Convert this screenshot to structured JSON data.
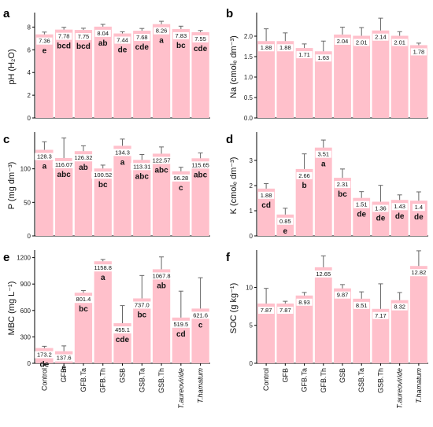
{
  "figure": {
    "bar_color": "#ffc0cb",
    "error_color": "#666666",
    "axis_color": "#000000"
  },
  "chart_data": [
    {
      "panel": "a",
      "type": "bar",
      "ylabel": "pH (H₂O)",
      "ylim": [
        0,
        9
      ],
      "yticks": [
        0,
        2,
        4,
        6,
        8
      ],
      "categories": [
        "Control",
        "GFB",
        "GFB.Ta",
        "GFB.Th",
        "GSB",
        "GSB.Ta",
        "GSB.Th",
        "T.aureoviride",
        "T.hamatum"
      ],
      "values": [
        7.36,
        7.78,
        7.75,
        8.04,
        7.44,
        7.68,
        8.26,
        7.83,
        7.55
      ],
      "errors": [
        0.2,
        0.2,
        0.15,
        0.2,
        0.15,
        0.2,
        0.25,
        0.25,
        0.15
      ],
      "value_labels": [
        "7.36",
        "7.78",
        "7.75",
        "8.04",
        "7.44",
        "7.68",
        "8.26",
        "7.83",
        "7.55"
      ],
      "groups": [
        "e",
        "bcd",
        "bcd",
        "ab",
        "de",
        "cde",
        "a",
        "bc",
        "cde"
      ]
    },
    {
      "panel": "b",
      "type": "bar",
      "ylabel": "Na (cmolₑ dm⁻³)",
      "ylim": [
        0,
        2.5
      ],
      "yticks": [
        0.0,
        0.5,
        1.0,
        1.5,
        2.0
      ],
      "categories": [
        "Control",
        "GFB",
        "GFB.Ta",
        "GFB.Th",
        "GSB",
        "GSB.Ta",
        "GSB.Th",
        "T.aureoviride",
        "T.hamatum"
      ],
      "values": [
        1.88,
        1.88,
        1.71,
        1.63,
        2.04,
        2.01,
        2.14,
        2.01,
        1.78
      ],
      "errors": [
        0.3,
        0.2,
        0.1,
        0.25,
        0.18,
        0.2,
        0.3,
        0.1,
        0.05
      ],
      "value_labels": [
        "1.88",
        "1.88",
        "1.71",
        "1.63",
        "2.04",
        "2.01",
        "2.14",
        "2.01",
        "1.78"
      ],
      "groups": []
    },
    {
      "panel": "c",
      "type": "bar",
      "ylabel": "P (mg dm⁻³)",
      "ylim": [
        0,
        150
      ],
      "yticks": [
        0,
        50,
        100
      ],
      "categories": [
        "Control",
        "GFB",
        "GFB.Ta",
        "GFB.Th",
        "GSB",
        "GSB.Ta",
        "GSB.Th",
        "T.aureoviride",
        "T.hamatum"
      ],
      "values": [
        128.3,
        116.07,
        126.32,
        100.52,
        134.3,
        113.31,
        122.57,
        96.28,
        115.65
      ],
      "errors": [
        12,
        30,
        8,
        5,
        10,
        8,
        10,
        6,
        8
      ],
      "value_labels": [
        "128.3",
        "116.07",
        "126.32",
        "100.52",
        "134.3",
        "113.31",
        "122.57",
        "96.28",
        "115.65"
      ],
      "groups": [
        "a",
        "abc",
        "ab",
        "bc",
        "a",
        "abc",
        "abc",
        "c",
        "abc"
      ]
    },
    {
      "panel": "d",
      "type": "bar",
      "ylabel": "K (cmolₑ dm⁻³)",
      "ylim": [
        0,
        4
      ],
      "yticks": [
        0,
        1,
        2,
        3
      ],
      "categories": [
        "Control",
        "GFB",
        "GFB.Ta",
        "GFB.Th",
        "GSB",
        "GSB.Ta",
        "GSB.Th",
        "T.aureoviride",
        "T.hamatum"
      ],
      "values": [
        1.88,
        0.85,
        2.66,
        3.51,
        2.31,
        1.51,
        1.36,
        1.43,
        1.4
      ],
      "errors": [
        0.2,
        0.25,
        0.6,
        0.3,
        0.35,
        0.25,
        0.65,
        0.2,
        0.35
      ],
      "value_labels": [
        "1.88",
        "0.85",
        "2.66",
        "3.51",
        "2.31",
        "1.51",
        "1.36",
        "1.43",
        "1.4"
      ],
      "groups": [
        "cd",
        "e",
        "b",
        "a",
        "bc",
        "de",
        "de",
        "de",
        "de"
      ]
    },
    {
      "panel": "e",
      "type": "bar",
      "ylabel": "MBC (mg L⁻¹)",
      "ylim": [
        0,
        1250
      ],
      "yticks": [
        0,
        300,
        600,
        900,
        1200
      ],
      "categories": [
        "Control",
        "GFB",
        "GFB.Ta",
        "GFB.Th",
        "GSB",
        "GSB.Ta",
        "GSB.Th",
        "T.aureoviride",
        "T.hamatum"
      ],
      "values": [
        173.2,
        137.6,
        801.4,
        1158.8,
        455.1,
        737.0,
        1067.8,
        519.5,
        621.6
      ],
      "errors": [
        20,
        60,
        25,
        20,
        200,
        260,
        140,
        300,
        350
      ],
      "value_labels": [
        "173.2",
        "137.6",
        "801.4",
        "1158.8",
        "455.1",
        "737.0",
        "1067.8",
        "519.5",
        "621.6"
      ],
      "groups": [
        "de",
        "e",
        "bc",
        "a",
        "cde",
        "bc",
        "ab",
        "cd",
        "c"
      ]
    },
    {
      "panel": "f",
      "type": "bar",
      "ylabel": "SOC (g kg⁻¹)",
      "ylim": [
        0,
        14.5
      ],
      "yticks": [
        0,
        5,
        10
      ],
      "categories": [
        "Control",
        "GFB",
        "GFB.Ta",
        "GFB.Th",
        "GSB",
        "GSB.Ta",
        "GSB.Th",
        "T.aureoviride",
        "T.hamatum"
      ],
      "values": [
        7.87,
        7.87,
        8.93,
        12.65,
        9.87,
        8.51,
        7.17,
        8.32,
        12.82
      ],
      "errors": [
        2.0,
        0.3,
        0.4,
        1.5,
        0.5,
        0.9,
        3.3,
        1.0,
        2.0
      ],
      "value_labels": [
        "7.87",
        "7.87",
        "8.93",
        "12.65",
        "9.87",
        "8.51",
        "7.17",
        "8.32",
        "12.82"
      ],
      "groups": []
    }
  ]
}
